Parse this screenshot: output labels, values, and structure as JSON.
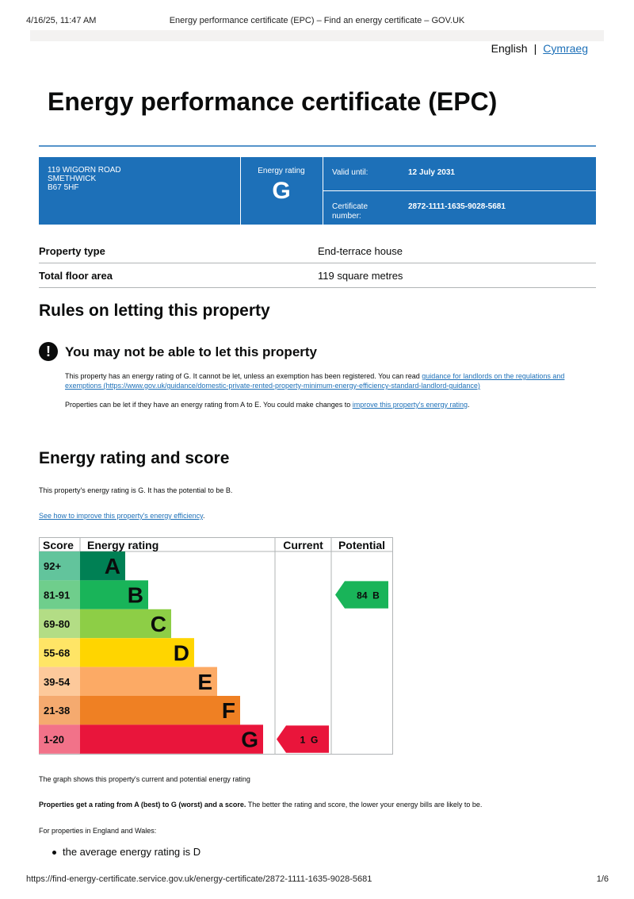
{
  "print": {
    "datetime": "4/16/25, 11:47 AM",
    "page_title": "Energy performance certificate (EPC) – Find an energy certificate – GOV.UK",
    "url": "https://find-energy-certificate.service.gov.uk/energy-certificate/2872-1111-1635-9028-5681",
    "page_num": "1/6"
  },
  "language": {
    "current": "English",
    "alternate": "Cymraeg"
  },
  "title": "Energy performance certificate (EPC)",
  "summary_box": {
    "address_line1": "119 WIGORN ROAD",
    "address_line2": "SMETHWICK",
    "address_line3": "B67 5HF",
    "rating_label": "Energy rating",
    "rating": "G",
    "valid_until_label": "Valid until:",
    "valid_until": "12 July 2031",
    "cert_label": "Certificate number:",
    "cert_number": "2872-1111-1635-9028-5681"
  },
  "property_summary": [
    {
      "label": "Property type",
      "value": "End-terrace house"
    },
    {
      "label": "Total floor area",
      "value": "119 square metres"
    }
  ],
  "letting": {
    "heading": "Rules on letting this property",
    "warning_icon": "!",
    "warning_title": "You may not be able to let this property",
    "para1_text": "This property has an energy rating of G. It cannot be let, unless an exemption has been registered. You can read",
    "para1_link": "guidance for landlords on the regulations and exemptions (https://www.gov.uk/guidance/domestic-private-rented-property-minimum-energy-efficiency-standard-landlord-guidance)",
    "para2_text": "Properties can be let if they have an energy rating from A to E. You could make changes to",
    "para2_link": "improve this property's energy rating",
    "para2_end": "."
  },
  "energy": {
    "heading": "Energy rating and score",
    "intro": "This property's energy rating is G. It has the potential to be B.",
    "improve_link": "See how to improve this property's energy efficiency",
    "improve_link_end": ".",
    "graph_note": "The graph shows this property's current and potential energy rating",
    "bold_text": "Properties get a rating from A (best) to G (worst) and a score.",
    "rest_text": " The better the rating and score, the lower your energy bills are likely to be.",
    "region": "For properties in England and Wales:",
    "bullet": "the average energy rating is D"
  },
  "chart_data": {
    "type": "table",
    "headers": {
      "score": "Score",
      "rating": "Energy rating",
      "current": "Current",
      "potential": "Potential"
    },
    "bands": [
      {
        "score": "92+",
        "letter": "A",
        "color": "#008054",
        "score_bg": "#62c49c"
      },
      {
        "score": "81-91",
        "letter": "B",
        "color": "#19b459",
        "score_bg": "#6fce8c"
      },
      {
        "score": "69-80",
        "letter": "C",
        "color": "#8dce46",
        "score_bg": "#b3dd85"
      },
      {
        "score": "55-68",
        "letter": "D",
        "color": "#ffd500",
        "score_bg": "#ffe566"
      },
      {
        "score": "39-54",
        "letter": "E",
        "color": "#fcaa65",
        "score_bg": "#fdc99b"
      },
      {
        "score": "21-38",
        "letter": "F",
        "color": "#ef8023",
        "score_bg": "#f5aa6f"
      },
      {
        "score": "1-20",
        "letter": "G",
        "color": "#e9153b",
        "score_bg": "#f27289"
      }
    ],
    "current": {
      "score": 1,
      "letter": "G",
      "label": "1  G",
      "color": "#e9153b"
    },
    "potential": {
      "score": 84,
      "letter": "B",
      "label": "84  B",
      "color": "#19b459"
    }
  }
}
